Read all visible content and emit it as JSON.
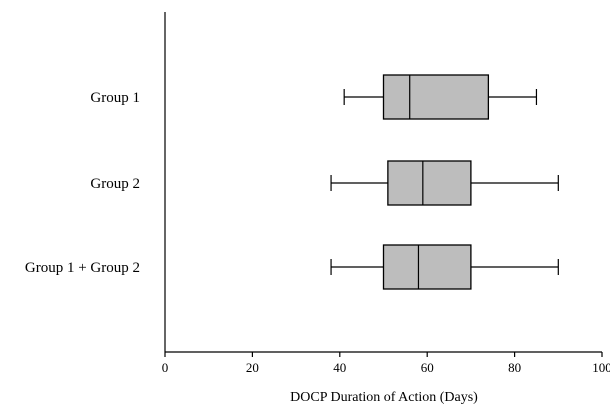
{
  "chart_data": {
    "type": "boxplot",
    "orientation": "horizontal",
    "title": "",
    "xlabel": "DOCP Duration of Action (Days)",
    "ylabel": "",
    "xlim": [
      0,
      100
    ],
    "xticks": [
      0,
      20,
      40,
      60,
      80,
      100
    ],
    "grid": false,
    "box_color": "#bdbdbd",
    "groups": [
      {
        "name": "Group 1",
        "min": 41,
        "q1": 50,
        "median": 56,
        "q3": 74,
        "max": 85
      },
      {
        "name": "Group 2",
        "min": 38,
        "q1": 51,
        "median": 59,
        "q3": 70,
        "max": 90
      },
      {
        "name": "Group 1 + Group 2",
        "min": 38,
        "q1": 50,
        "median": 58,
        "q3": 70,
        "max": 90
      }
    ]
  }
}
